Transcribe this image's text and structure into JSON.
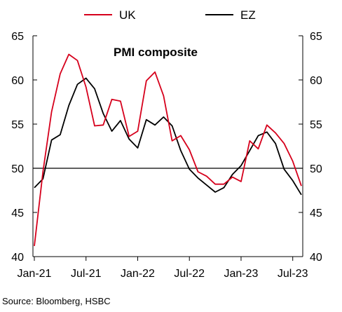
{
  "chart_data": {
    "type": "line",
    "title": "PMI composite",
    "source": "Source: Bloomberg, HSBC",
    "x": [
      "Jan-21",
      "Feb-21",
      "Mar-21",
      "Apr-21",
      "May-21",
      "Jun-21",
      "Jul-21",
      "Aug-21",
      "Sep-21",
      "Oct-21",
      "Nov-21",
      "Dec-21",
      "Jan-22",
      "Feb-22",
      "Mar-22",
      "Apr-22",
      "May-22",
      "Jun-22",
      "Jul-22",
      "Aug-22",
      "Sep-22",
      "Oct-22",
      "Nov-22",
      "Dec-22",
      "Jan-23",
      "Feb-23",
      "Mar-23",
      "Apr-23",
      "May-23",
      "Jun-23",
      "Jul-23",
      "Aug-23"
    ],
    "x_tick_labels": [
      "Jan-21",
      "Jul-21",
      "Jan-22",
      "Jul-22",
      "Jan-23",
      "Jul-23"
    ],
    "series": [
      {
        "name": "UK",
        "color": "#d6001c",
        "values": [
          41.2,
          49.6,
          56.4,
          60.7,
          62.9,
          62.2,
          59.2,
          54.8,
          54.9,
          57.8,
          57.6,
          53.6,
          54.2,
          59.9,
          60.9,
          58.2,
          53.1,
          53.7,
          52.1,
          49.6,
          49.1,
          48.2,
          48.2,
          49.0,
          48.5,
          53.1,
          52.2,
          54.9,
          54.0,
          52.8,
          50.8,
          48.0
        ]
      },
      {
        "name": "EZ",
        "color": "#000000",
        "values": [
          47.8,
          48.8,
          53.2,
          53.8,
          57.1,
          59.5,
          60.2,
          59.0,
          56.2,
          54.2,
          55.4,
          53.3,
          52.3,
          55.5,
          54.9,
          55.8,
          54.8,
          52.0,
          49.9,
          48.9,
          48.1,
          47.3,
          47.8,
          49.3,
          50.3,
          52.0,
          53.7,
          54.1,
          52.8,
          49.9,
          48.6,
          47.0
        ]
      }
    ],
    "ylim": [
      40,
      65
    ],
    "yticks": [
      40,
      45,
      50,
      55,
      60,
      65
    ],
    "reference_line": 50,
    "grid": false,
    "legend_position": "top"
  }
}
